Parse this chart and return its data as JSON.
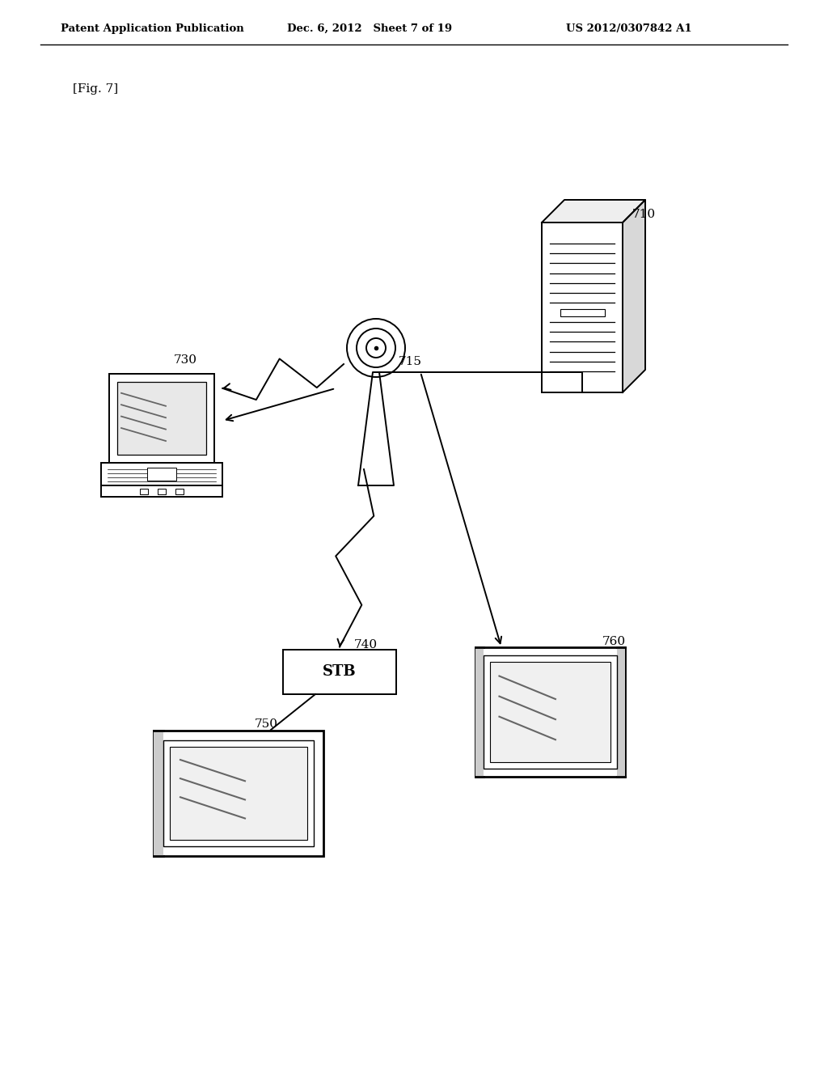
{
  "bg_color": "#ffffff",
  "header_left": "Patent Application Publication",
  "header_mid": "Dec. 6, 2012   Sheet 7 of 19",
  "header_right": "US 2012/0307842 A1",
  "fig_label": "[Fig. 7]",
  "line_color": "#000000",
  "text_color": "#000000"
}
